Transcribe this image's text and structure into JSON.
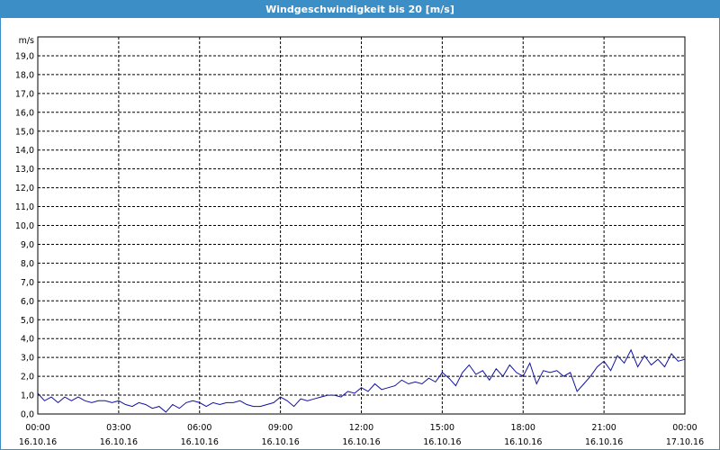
{
  "window": {
    "title": "Windgeschwindigkeit bis 20 [m/s]"
  },
  "colors": {
    "titlebar": "#3c8fc6",
    "series": "#1010a0",
    "grid": "#000000"
  },
  "chart_data": {
    "type": "line",
    "title": "Windgeschwindigkeit bis 20 [m/s]",
    "ylabel": "m/s",
    "ylim": [
      0,
      20
    ],
    "yticks": [
      "0,0",
      "1,0",
      "2,0",
      "3,0",
      "4,0",
      "5,0",
      "6,0",
      "7,0",
      "8,0",
      "9,0",
      "10,0",
      "11,0",
      "12,0",
      "13,0",
      "14,0",
      "15,0",
      "16,0",
      "17,0",
      "18,0",
      "19,0"
    ],
    "xlim": [
      "16.10.16 00:00",
      "17.10.16 00:00"
    ],
    "xticks": [
      {
        "time": "00:00",
        "date": "16.10.16"
      },
      {
        "time": "03:00",
        "date": "16.10.16"
      },
      {
        "time": "06:00",
        "date": "16.10.16"
      },
      {
        "time": "09:00",
        "date": "16.10.16"
      },
      {
        "time": "12:00",
        "date": "16.10.16"
      },
      {
        "time": "15:00",
        "date": "16.10.16"
      },
      {
        "time": "18:00",
        "date": "16.10.16"
      },
      {
        "time": "21:00",
        "date": "16.10.16"
      },
      {
        "time": "00:00",
        "date": "17.10.16"
      }
    ],
    "grid": true,
    "series": [
      {
        "x": [
          "00:00",
          "00:15",
          "00:30",
          "00:45",
          "01:00",
          "01:15",
          "01:30",
          "01:45",
          "02:00",
          "02:15",
          "02:30",
          "02:45",
          "03:00",
          "03:15",
          "03:30",
          "03:45",
          "04:00",
          "04:15",
          "04:30",
          "04:45",
          "05:00",
          "05:15",
          "05:30",
          "05:45",
          "06:00",
          "06:15",
          "06:30",
          "06:45",
          "07:00",
          "07:15",
          "07:30",
          "07:45",
          "08:00",
          "08:15",
          "08:30",
          "08:45",
          "09:00",
          "09:15",
          "09:30",
          "09:45",
          "10:00",
          "10:15",
          "10:30",
          "10:45",
          "11:00",
          "11:15",
          "11:30",
          "11:45",
          "12:00",
          "12:15",
          "12:30",
          "12:45",
          "13:00",
          "13:15",
          "13:30",
          "13:45",
          "14:00",
          "14:15",
          "14:30",
          "14:45",
          "15:00",
          "15:15",
          "15:30",
          "15:45",
          "16:00",
          "16:15",
          "16:30",
          "16:45",
          "17:00",
          "17:15",
          "17:30",
          "17:45",
          "18:00",
          "18:15",
          "18:30",
          "18:45",
          "19:00",
          "19:15",
          "19:30",
          "19:45",
          "20:00",
          "20:15",
          "20:30",
          "20:45",
          "21:00",
          "21:15",
          "21:30",
          "21:45",
          "22:00",
          "22:15",
          "22:30",
          "22:45",
          "23:00",
          "23:15",
          "23:30",
          "23:45",
          "24:00"
        ],
        "y": [
          1.1,
          0.7,
          0.9,
          0.6,
          0.9,
          0.7,
          0.9,
          0.7,
          0.6,
          0.7,
          0.7,
          0.6,
          0.7,
          0.5,
          0.4,
          0.6,
          0.5,
          0.3,
          0.4,
          0.1,
          0.5,
          0.3,
          0.6,
          0.7,
          0.6,
          0.4,
          0.6,
          0.5,
          0.6,
          0.6,
          0.7,
          0.5,
          0.4,
          0.4,
          0.5,
          0.6,
          0.9,
          0.7,
          0.4,
          0.8,
          0.7,
          0.8,
          0.9,
          1.0,
          1.0,
          0.9,
          1.2,
          1.1,
          1.4,
          1.2,
          1.6,
          1.3,
          1.4,
          1.5,
          1.8,
          1.6,
          1.7,
          1.6,
          1.9,
          1.7,
          2.2,
          1.9,
          1.5,
          2.2,
          2.6,
          2.1,
          2.3,
          1.8,
          2.4,
          2.0,
          2.6,
          2.2,
          2.0,
          2.7,
          1.6,
          2.3,
          2.2,
          2.3,
          2.0,
          2.2,
          1.2,
          1.6,
          2.0,
          2.5,
          2.8,
          2.3,
          3.1,
          2.7,
          3.4,
          2.5,
          3.1,
          2.6,
          2.9,
          2.5,
          3.2,
          2.8,
          2.9
        ]
      }
    ]
  }
}
